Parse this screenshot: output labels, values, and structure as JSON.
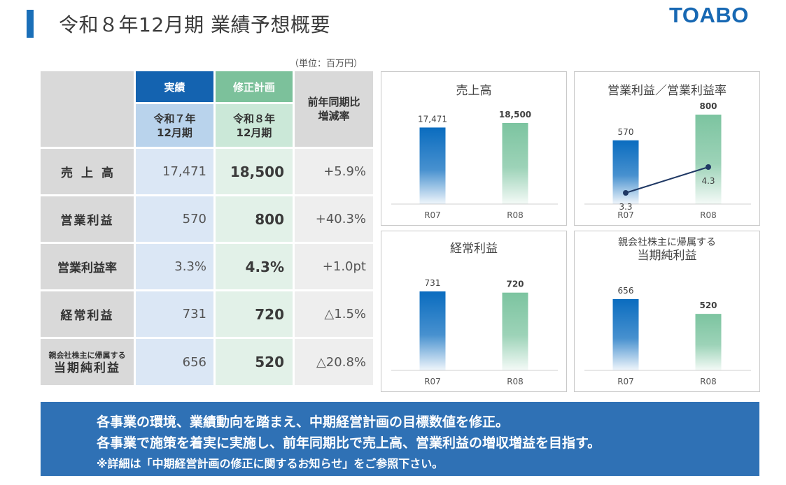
{
  "header": {
    "title": "令和８年12月期 業績予想概要",
    "logo_text": "TOABO",
    "brand_color": "#1768b3"
  },
  "table": {
    "unit": "（単位：百万円）",
    "col_actual": "実績",
    "col_plan": "修正計画",
    "col_actual_period": "令和７年\n12月期",
    "col_plan_period": "令和８年\n12月期",
    "col_change": "前年同期比\n増減率",
    "rows": [
      {
        "label": "売上高",
        "actual": "17,471",
        "plan": "18,500",
        "change": "+5.9%"
      },
      {
        "label": "営業利益",
        "actual": "570",
        "plan": "800",
        "change": "+40.3%"
      },
      {
        "label": "営業利益率",
        "actual": "3.3%",
        "plan": "4.3%",
        "change": "+1.0pt"
      },
      {
        "label": "経常利益",
        "actual": "731",
        "plan": "720",
        "change": "△1.5%"
      },
      {
        "label_small": "親会社株主に帰属する",
        "label": "当期純利益",
        "actual": "656",
        "plan": "520",
        "change": "△20.8%"
      }
    ]
  },
  "colors": {
    "actual": "#0a6cbf",
    "plan": "#7cc4a0",
    "line": "#1f3864"
  },
  "chart_data": [
    {
      "type": "bar",
      "title": "売上高",
      "categories": [
        "R07",
        "R08"
      ],
      "values": [
        17471,
        18500
      ],
      "value_labels": [
        "17,471",
        "18,500"
      ]
    },
    {
      "type": "bar+line",
      "title": "営業利益／営業利益率",
      "categories": [
        "R07",
        "R08"
      ],
      "values": [
        570,
        800
      ],
      "value_labels": [
        "570",
        "800"
      ],
      "line_values": [
        3.3,
        4.3
      ],
      "line_labels": [
        "3.3",
        "4.3"
      ]
    },
    {
      "type": "bar",
      "title": "経常利益",
      "categories": [
        "R07",
        "R08"
      ],
      "values": [
        731,
        720
      ],
      "value_labels": [
        "731",
        "720"
      ]
    },
    {
      "type": "bar",
      "title_line1": "親会社株主に帰属する",
      "title_line2": "当期純利益",
      "categories": [
        "R07",
        "R08"
      ],
      "values": [
        656,
        520
      ],
      "value_labels": [
        "656",
        "520"
      ]
    }
  ],
  "banner": {
    "line1": "各事業の環境、業績動向を踏まえ、中期経営計画の目標数値を修正。",
    "line2": "各事業で施策を着実に実施し、前年同期比で売上高、営業利益の増収増益を目指す。",
    "line3": "※詳細は「中期経営計画の修正に関するお知らせ」をご参照下さい。"
  }
}
